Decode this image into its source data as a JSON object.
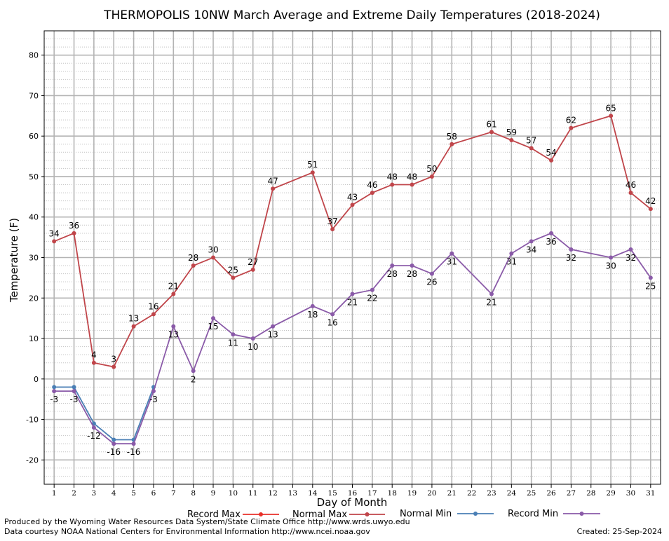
{
  "chart_data": {
    "type": "line",
    "title": "THERMOPOLIS 10NW March Average and Extreme Daily Temperatures (2018-2024)",
    "xlabel": "Day of Month",
    "ylabel": "Temperature (F)",
    "xlim": [
      0.5,
      31.5
    ],
    "ylim": [
      -26,
      86
    ],
    "x_ticks": [
      1,
      2,
      3,
      4,
      5,
      6,
      7,
      8,
      9,
      10,
      11,
      12,
      13,
      14,
      15,
      16,
      17,
      18,
      19,
      20,
      21,
      22,
      23,
      24,
      25,
      26,
      27,
      28,
      29,
      30,
      31
    ],
    "y_ticks": [
      -20,
      -10,
      0,
      10,
      20,
      30,
      40,
      50,
      60,
      70,
      80
    ],
    "legend_position": "bottom",
    "legend": [
      "Record Max",
      "Normal Max",
      "Normal Min",
      "Record Min"
    ],
    "series": [
      {
        "name": "Record Max",
        "color": "#e8312a",
        "points": []
      },
      {
        "name": "Normal Max",
        "color": "#c0454a",
        "label_position": "above",
        "points": [
          [
            1,
            34
          ],
          [
            2,
            36
          ],
          [
            3,
            4
          ],
          [
            4,
            3
          ],
          [
            5,
            13
          ],
          [
            6,
            16
          ],
          [
            7,
            21
          ],
          [
            8,
            28
          ],
          [
            9,
            30
          ],
          [
            10,
            25
          ],
          [
            11,
            27
          ],
          [
            12,
            47
          ],
          [
            14,
            51
          ],
          [
            15,
            37
          ],
          [
            16,
            43
          ],
          [
            17,
            46
          ],
          [
            18,
            48
          ],
          [
            19,
            48
          ],
          [
            20,
            50
          ],
          [
            21,
            58
          ],
          [
            23,
            61
          ],
          [
            24,
            59
          ],
          [
            25,
            57
          ],
          [
            26,
            54
          ],
          [
            27,
            62
          ],
          [
            29,
            65
          ],
          [
            30,
            46
          ],
          [
            31,
            42
          ]
        ]
      },
      {
        "name": "Normal Min",
        "color": "#4a7fb5",
        "label_position": "none",
        "points": [
          [
            1,
            -2
          ],
          [
            2,
            -2
          ],
          [
            3,
            -11
          ],
          [
            4,
            -15
          ],
          [
            5,
            -15
          ],
          [
            6,
            -2
          ]
        ]
      },
      {
        "name": "Record Min",
        "color": "#8a5aa8",
        "label_position": "below",
        "points": [
          [
            1,
            -3
          ],
          [
            2,
            -3
          ],
          [
            3,
            -12
          ],
          [
            4,
            -16
          ],
          [
            5,
            -16
          ],
          [
            6,
            -3
          ],
          [
            7,
            13
          ],
          [
            8,
            2
          ],
          [
            9,
            15
          ],
          [
            10,
            11
          ],
          [
            11,
            10
          ],
          [
            12,
            13
          ],
          [
            14,
            18
          ],
          [
            15,
            16
          ],
          [
            16,
            21
          ],
          [
            17,
            22
          ],
          [
            18,
            28
          ],
          [
            19,
            28
          ],
          [
            20,
            26
          ],
          [
            21,
            31
          ],
          [
            23,
            21
          ],
          [
            24,
            31
          ],
          [
            25,
            34
          ],
          [
            26,
            36
          ],
          [
            27,
            32
          ],
          [
            29,
            30
          ],
          [
            30,
            32
          ],
          [
            31,
            25
          ]
        ]
      }
    ]
  },
  "footer": {
    "left_line1": "Produced by the Wyoming Water Resources Data System/State Climate Office http://www.wrds.uwyo.edu",
    "left_line2": "Data courtesy NOAA National Centers for Environmental Information http://www.ncei.noaa.gov",
    "created": "Created:  25-Sep-2024"
  }
}
